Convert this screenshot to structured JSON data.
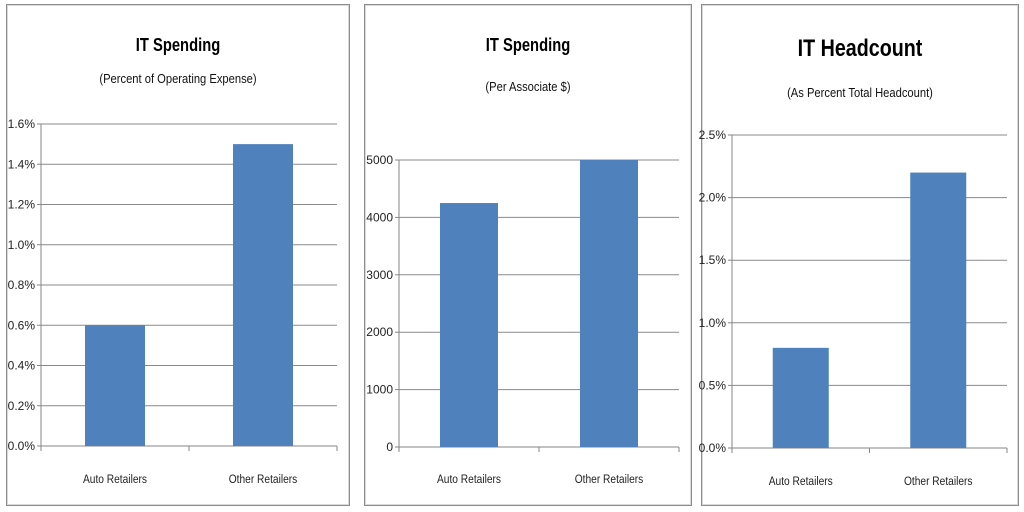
{
  "chart_data": [
    {
      "type": "bar",
      "title": "IT Spending",
      "subtitle": "(Percent of Operating Expense)",
      "categories": [
        "Auto Retailers",
        "Other Retailers"
      ],
      "values": [
        0.6,
        1.5
      ],
      "ylim": [
        0,
        1.6
      ],
      "yticks": [
        "0.0%",
        "0.2%",
        "0.4%",
        "0.6%",
        "0.8%",
        "1.0%",
        "1.2%",
        "1.4%",
        "1.6%"
      ],
      "grid": true,
      "bar_color": "#4f81bd"
    },
    {
      "type": "bar",
      "title": "IT Spending",
      "subtitle": "(Per Associate $)",
      "categories": [
        "Auto Retailers",
        "Other Retailers"
      ],
      "values": [
        4250,
        5000
      ],
      "ylim": [
        0,
        5000
      ],
      "yticks": [
        "0",
        "1000",
        "2000",
        "3000",
        "4000",
        "5000"
      ],
      "grid": true,
      "bar_color": "#4f81bd"
    },
    {
      "type": "bar",
      "title": "IT Headcount",
      "subtitle": "(As Percent Total Headcount)",
      "categories": [
        "Auto Retailers",
        "Other Retailers"
      ],
      "values": [
        0.8,
        2.2
      ],
      "ylim": [
        0,
        2.5
      ],
      "yticks": [
        "0.0%",
        "0.5%",
        "1.0%",
        "1.5%",
        "2.0%",
        "2.5%"
      ],
      "grid": true,
      "bar_color": "#4f81bd"
    }
  ]
}
